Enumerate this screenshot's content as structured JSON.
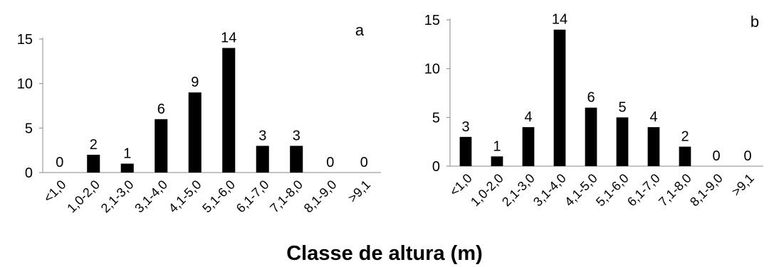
{
  "chart_data": [
    {
      "type": "bar",
      "panel_label": "a",
      "categories": [
        "<1,0",
        "1,0-2,0",
        "2,1-3,0",
        "3,1-4,0",
        "4,1-5,0",
        "5,1-6,0",
        "6,1-7,0",
        "7,1-8,0",
        "8,1-9,0",
        ">9,1"
      ],
      "values": [
        0,
        2,
        1,
        6,
        9,
        14,
        3,
        3,
        0,
        0
      ],
      "ylim": [
        0,
        15
      ],
      "yticks": [
        "0",
        "5",
        "10",
        "15"
      ],
      "grid": false,
      "bar_color": "#000000"
    },
    {
      "type": "bar",
      "panel_label": "b",
      "categories": [
        "<1,0",
        "1,0-2,0",
        "2,1-3,0",
        "3,1-4,0",
        "4,1-5,0",
        "5,1-6,0",
        "6,1-7,0",
        "7,1-8,0",
        "8,1-9,0",
        ">9,1"
      ],
      "values": [
        3,
        1,
        4,
        14,
        6,
        5,
        4,
        2,
        0,
        0
      ],
      "ylim": [
        0,
        15
      ],
      "yticks": [
        "0",
        "5",
        "10",
        "15"
      ],
      "grid": false,
      "bar_color": "#000000"
    }
  ],
  "xlabel": "Classe de altura (m)"
}
